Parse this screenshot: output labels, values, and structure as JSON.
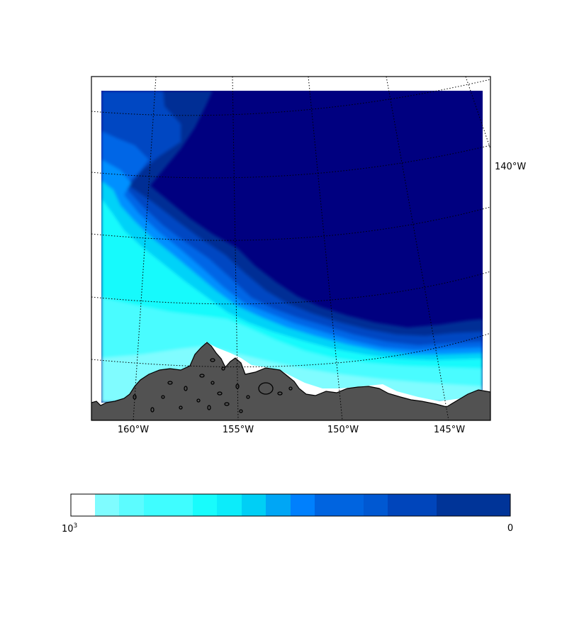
{
  "map": {
    "projection": "polar stereographic",
    "region": "Beaufort Sea / North Slope of Alaska",
    "longitude_labels": [
      "160°W",
      "155°W",
      "150°W",
      "145°W"
    ],
    "right_label": "140°W",
    "ocean_deep_color": "#000080",
    "land_color": "#525252",
    "coastline_color": "#000000",
    "graticule_style": "dotted"
  },
  "colorbar": {
    "orientation": "horizontal",
    "scale": "log",
    "left_label_base": "10",
    "left_label_exp": "3",
    "right_label": "0",
    "colors": [
      "#ffffff",
      "#7ffcff",
      "#5cfcff",
      "#3ffdff",
      "#18fcfc",
      "#0cecfa",
      "#00cff5",
      "#00a6f5",
      "#0080fd",
      "#0064e0",
      "#0058d2",
      "#0045bb",
      "#003498",
      "#000080"
    ]
  }
}
